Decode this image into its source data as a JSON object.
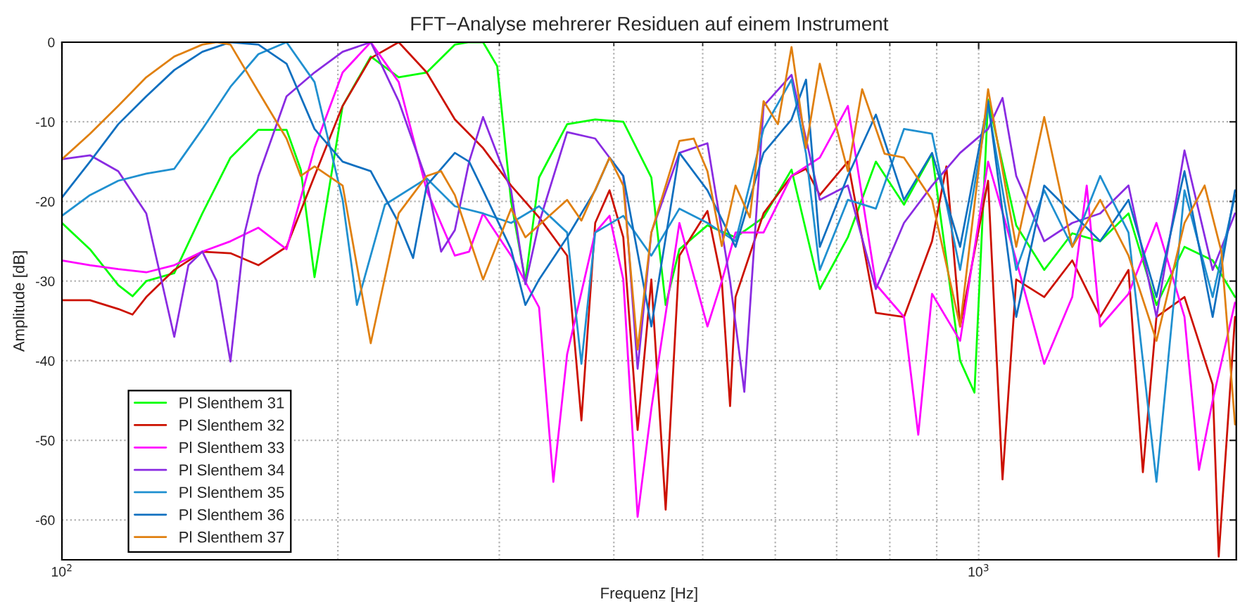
{
  "chart_data": {
    "type": "line",
    "title": "FFT−Analyse mehrerer Residuen auf einem Instrument",
    "xlabel": "Frequenz [Hz]",
    "ylabel": "Amplitude [dB]",
    "log": "x",
    "grid": true,
    "legend": "bottom left",
    "xlim": [
      100,
      1910
    ],
    "ylim": [
      -65,
      0
    ],
    "xticks": [
      {
        "value": 100,
        "label": "10$^{2}$"
      },
      {
        "value": 1000,
        "label": "10$^{3}$"
      }
    ],
    "yticks": [
      -60,
      -50,
      -40,
      -30,
      -20,
      -10,
      0
    ],
    "series": [
      {
        "name": "Pl Slenthem 31",
        "color": "#00ff00",
        "x": [
          100,
          107.3,
          115.2,
          119.4,
          123.6,
          132.6,
          142.3,
          152.7,
          163.8,
          175.8,
          182.2,
          188.6,
          202.4,
          217.2,
          233,
          250,
          268.3,
          278.1,
          288,
          298.4,
          309,
          320.3,
          331.5,
          355.7,
          381.7,
          409.6,
          439.5,
          455.6,
          471.6,
          506,
          543,
          582.6,
          625,
          671,
          720,
          772.5,
          829,
          889.5,
          954.5,
          989.5,
          1024,
          1099,
          1179,
          1265,
          1357,
          1457,
          1563,
          1677,
          1800,
          1904
        ],
        "values": [
          -22.7,
          -26,
          -30.5,
          -31.9,
          -30,
          -29,
          -21.5,
          -14.5,
          -11,
          -11,
          -16,
          -29.5,
          -8,
          -1.8,
          -4.4,
          -3.8,
          -0.3,
          0,
          0,
          -3,
          -20,
          -30,
          -17,
          -10.3,
          -9.7,
          -10,
          -17,
          -33,
          -26,
          -23,
          -24.5,
          -22,
          -16,
          -31,
          -24.5,
          -15,
          -20.4,
          -14,
          -40,
          -44,
          -7.2,
          -23,
          -28.6,
          -24,
          -25,
          -21.5,
          -33,
          -25.7,
          -27.4,
          -32
        ]
      },
      {
        "name": "Pl Slenthem 32",
        "color": "#cc1100",
        "x": [
          100,
          107.3,
          115.2,
          119.4,
          123.6,
          132.6,
          142.3,
          152.7,
          163.8,
          175.8,
          188.6,
          202.4,
          217.2,
          233,
          250,
          268.3,
          288,
          309,
          331.5,
          355.7,
          368.7,
          381.7,
          395.7,
          409.6,
          424.6,
          439.5,
          455.6,
          471.6,
          506,
          524.6,
          535.6,
          543,
          582.6,
          625,
          648.2,
          671,
          720,
          772.5,
          829,
          889.5,
          922.1,
          954.5,
          1024,
          1061.8,
          1099,
          1179,
          1265,
          1357,
          1457,
          1510.6,
          1563,
          1677,
          1800,
          1827.5,
          1904
        ],
        "values": [
          -32.4,
          -32.4,
          -33.5,
          -34.2,
          -32,
          -28.6,
          -26.3,
          -26.5,
          -28,
          -25.7,
          -16.8,
          -8,
          -2,
          0,
          -3.8,
          -9.7,
          -13.3,
          -18,
          -22,
          -26.8,
          -47.5,
          -22.7,
          -18.6,
          -24.5,
          -48.7,
          -29.8,
          -58.7,
          -26.8,
          -21.2,
          -30,
          -45.7,
          -32,
          -21.5,
          -16.8,
          -15.9,
          -19.2,
          -15,
          -34,
          -34.5,
          -25,
          -15.6,
          -35.7,
          -17.4,
          -54.9,
          -29.8,
          -32,
          -27.4,
          -34.5,
          -28.6,
          -54,
          -34.5,
          -32,
          -43,
          -64.6,
          -34.5
        ]
      },
      {
        "name": "Pl Slenthem 33",
        "color": "#ff00ff",
        "x": [
          100,
          107.3,
          115.2,
          123.6,
          132.6,
          142.3,
          152.7,
          163.8,
          175.8,
          188.6,
          202.4,
          217.2,
          233,
          250,
          268.3,
          278.1,
          288,
          309,
          331.5,
          343.6,
          355.7,
          381.7,
          395.7,
          409.6,
          424.6,
          439.5,
          471.6,
          506,
          524.6,
          543,
          582.6,
          625,
          671,
          720,
          772.5,
          829,
          859.3,
          889.5,
          954.5,
          1024,
          1099,
          1179,
          1265,
          1311.9,
          1357,
          1457,
          1563,
          1677,
          1739.4,
          1800,
          1904
        ],
        "values": [
          -27.4,
          -28,
          -28.5,
          -28.9,
          -28,
          -26.3,
          -25,
          -23.3,
          -26,
          -13.3,
          -3.8,
          0,
          -5,
          -18.6,
          -26.8,
          -26.3,
          -21.5,
          -26.8,
          -33.3,
          -55.2,
          -39.2,
          -23.9,
          -21.8,
          -29.8,
          -59.6,
          -46,
          -22.7,
          -35.7,
          -30,
          -23.9,
          -23.9,
          -16.8,
          -14.5,
          -8,
          -30.4,
          -34.5,
          -49.3,
          -31.6,
          -37.5,
          -15,
          -27.4,
          -40.4,
          -32,
          -18,
          -35.7,
          -31.6,
          -22.7,
          -34.5,
          -53.7,
          -45,
          -32.7
        ]
      },
      {
        "name": "Pl Slenthem 34",
        "color": "#8a2be2",
        "x": [
          100,
          107.3,
          115.2,
          123.6,
          132.6,
          137.4,
          142.3,
          147.5,
          152.7,
          158.2,
          163.8,
          175.8,
          188.6,
          202.4,
          217.2,
          233,
          250,
          259.2,
          268.3,
          278.1,
          288,
          309,
          320.3,
          331.5,
          355.7,
          381.7,
          409.6,
          424.6,
          439.5,
          471.6,
          506,
          535.6,
          555.1,
          582.6,
          625,
          671,
          720,
          772.5,
          829,
          889.5,
          954.5,
          1024,
          1061.8,
          1099,
          1179,
          1265,
          1357,
          1457,
          1563,
          1677,
          1800,
          1904
        ],
        "values": [
          -14.7,
          -14.2,
          -16.2,
          -21.5,
          -37,
          -28,
          -26.3,
          -30,
          -40.1,
          -24,
          -16.8,
          -6.8,
          -3.8,
          -1.2,
          0,
          -7.4,
          -17.4,
          -26.3,
          -23.6,
          -15,
          -9.4,
          -18.6,
          -30.4,
          -22.7,
          -11.3,
          -12.1,
          -16.8,
          -41,
          -23.9,
          -13.9,
          -12.7,
          -30,
          -43.9,
          -8,
          -4.1,
          -19.8,
          -18,
          -31,
          -22.7,
          -18,
          -13.9,
          -10.9,
          -7,
          -16.8,
          -25,
          -22.7,
          -21.5,
          -18,
          -34.5,
          -13.6,
          -28.6,
          -21.5
        ]
      },
      {
        "name": "Pl Slenthem 35",
        "color": "#2090d0",
        "x": [
          100,
          107.3,
          115.2,
          123.6,
          132.6,
          142.3,
          152.7,
          163.8,
          175.8,
          188.6,
          202.4,
          209.8,
          225.1,
          250,
          268.3,
          288,
          309,
          331.5,
          355.7,
          368.7,
          381.7,
          409.6,
          439.5,
          471.6,
          506,
          543,
          582.6,
          625,
          648.2,
          671,
          720,
          772.5,
          829,
          889.5,
          954.5,
          1024,
          1099,
          1179,
          1265,
          1357,
          1457,
          1563,
          1677,
          1800,
          1904
        ],
        "values": [
          -21.8,
          -19.2,
          -17.4,
          -16.5,
          -15.9,
          -10.9,
          -5.6,
          -1.5,
          0,
          -5,
          -19.8,
          -33,
          -20.4,
          -17.1,
          -20.6,
          -21.5,
          -22.7,
          -20.6,
          -23.9,
          -40.4,
          -23.9,
          -21.8,
          -26.8,
          -20.9,
          -22.7,
          -25,
          -10.9,
          -4.7,
          -14,
          -28.6,
          -19.8,
          -20.9,
          -10.9,
          -11.5,
          -28.6,
          -8,
          -28.6,
          -18.6,
          -25.7,
          -16.8,
          -23.9,
          -55.2,
          -18.6,
          -32,
          -19.2
        ]
      },
      {
        "name": "Pl Slenthem 36",
        "color": "#1070c0",
        "x": [
          100,
          107.3,
          115.2,
          123.6,
          132.6,
          142.3,
          152.7,
          163.8,
          175.8,
          188.6,
          202.4,
          217.2,
          233,
          241.6,
          250,
          268.3,
          278.1,
          288,
          309,
          320.3,
          331.5,
          355.7,
          381.7,
          395.7,
          409.6,
          439.5,
          471.6,
          506,
          543,
          582.6,
          625,
          648.2,
          671,
          720,
          772.5,
          829,
          889.5,
          954.5,
          1024,
          1099,
          1179,
          1265,
          1357,
          1457,
          1563,
          1677,
          1800,
          1904
        ],
        "values": [
          -19.5,
          -15,
          -10.3,
          -6.8,
          -3.5,
          -1.2,
          0,
          -0.3,
          -2.7,
          -10.9,
          -15,
          -16.2,
          -22.7,
          -27.1,
          -18,
          -13.9,
          -15,
          -18.6,
          -26,
          -33,
          -29.8,
          -24.5,
          -18.6,
          -14.5,
          -16.8,
          -35.7,
          -13.9,
          -18.6,
          -25.7,
          -13.9,
          -9.7,
          -4.7,
          -25.7,
          -16.8,
          -9.1,
          -19.8,
          -13.9,
          -25.7,
          -7.4,
          -34.5,
          -18,
          -21.5,
          -25,
          -19.8,
          -32,
          -16.2,
          -34.5,
          -18.6
        ]
      },
      {
        "name": "Pl Slenthem 37",
        "color": "#e08010",
        "x": [
          100,
          107.3,
          115.2,
          123.6,
          132.6,
          142.3,
          147.5,
          152.7,
          163.8,
          175.8,
          182.2,
          188.6,
          202.4,
          217.2,
          233,
          250,
          259.2,
          268.3,
          288,
          309,
          320.3,
          355.7,
          368.7,
          395.7,
          409.6,
          424.6,
          439.5,
          471.6,
          488.9,
          506,
          524.6,
          543,
          562.9,
          582.6,
          604,
          625,
          648.2,
          671,
          720,
          746.3,
          789.5,
          829,
          889.5,
          954.5,
          1024,
          1099,
          1179,
          1265,
          1357,
          1457,
          1563,
          1677,
          1764,
          1840,
          1904
        ],
        "values": [
          -14.7,
          -11.5,
          -8,
          -4.4,
          -1.8,
          -0.3,
          0,
          -0.3,
          -6.2,
          -12.1,
          -16.8,
          -15.6,
          -18,
          -37.8,
          -21.5,
          -16.8,
          -16.2,
          -19.2,
          -29.8,
          -20.9,
          -24.5,
          -19.8,
          -22.4,
          -14.5,
          -18,
          -38.6,
          -23.9,
          -12.4,
          -12.1,
          -16.2,
          -25.6,
          -18,
          -22,
          -7.4,
          -10.3,
          -0.6,
          -13.3,
          -2.7,
          -16.2,
          -5.9,
          -14,
          -14.5,
          -19.8,
          -35.7,
          -5.9,
          -25.7,
          -9.4,
          -25.7,
          -19.8,
          -26.8,
          -37.5,
          -22.7,
          -18,
          -26.3,
          -48
        ]
      }
    ]
  }
}
